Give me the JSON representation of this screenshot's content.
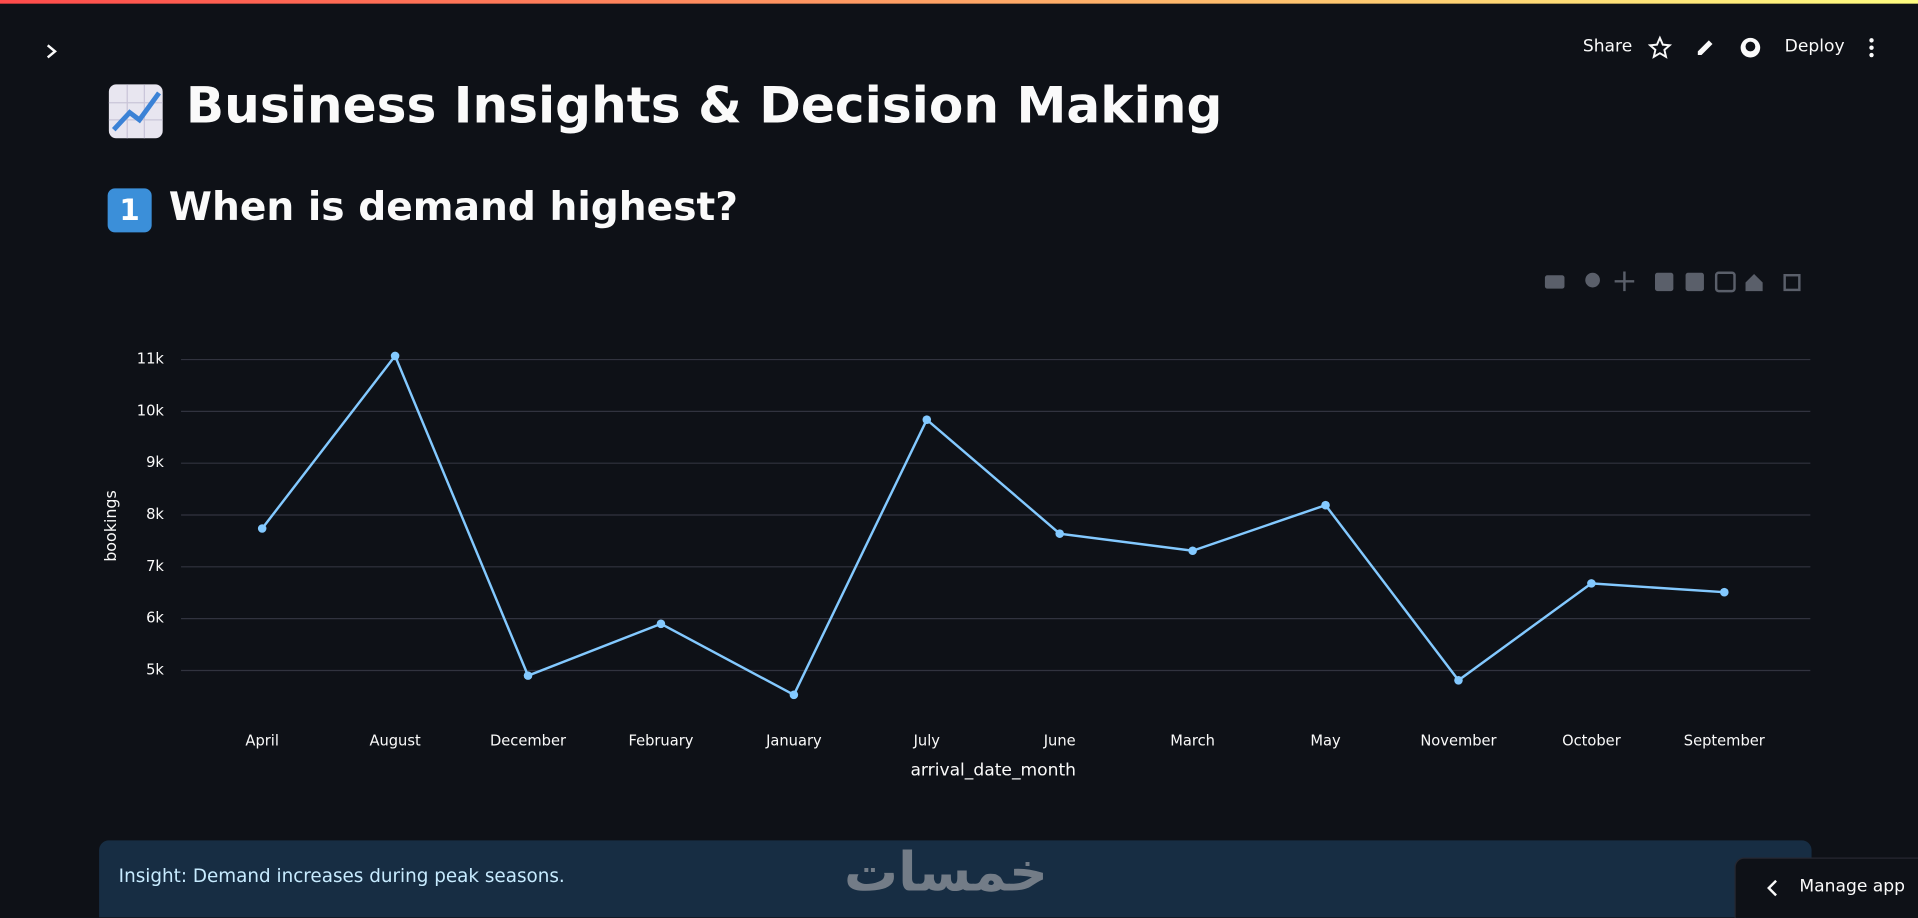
{
  "toolbar": {
    "share": "Share",
    "deploy": "Deploy"
  },
  "title": "Business Insights & Decision Making",
  "section_number": "1",
  "section_heading": "When is demand highest?",
  "chart_data": {
    "type": "line",
    "x_label": "arrival_date_month",
    "y_label": "bookings",
    "categories": [
      "April",
      "August",
      "December",
      "February",
      "January",
      "July",
      "June",
      "March",
      "May",
      "November",
      "October",
      "September"
    ],
    "values": [
      7740,
      11070,
      4900,
      5900,
      4530,
      9840,
      7640,
      7310,
      8190,
      4810,
      6680,
      6510
    ],
    "color": "#83c9ff",
    "ylim": [
      4200,
      11400
    ],
    "yticks": [
      {
        "value": 5000,
        "label": "5k"
      },
      {
        "value": 6000,
        "label": "6k"
      },
      {
        "value": 7000,
        "label": "7k"
      },
      {
        "value": 8000,
        "label": "8k"
      },
      {
        "value": 9000,
        "label": "9k"
      },
      {
        "value": 10000,
        "label": "10k"
      },
      {
        "value": 11000,
        "label": "11k"
      }
    ],
    "grid": true
  },
  "insight": "Insight: Demand increases during peak seasons.",
  "watermark": "خمسات",
  "manage_app": "Manage app"
}
